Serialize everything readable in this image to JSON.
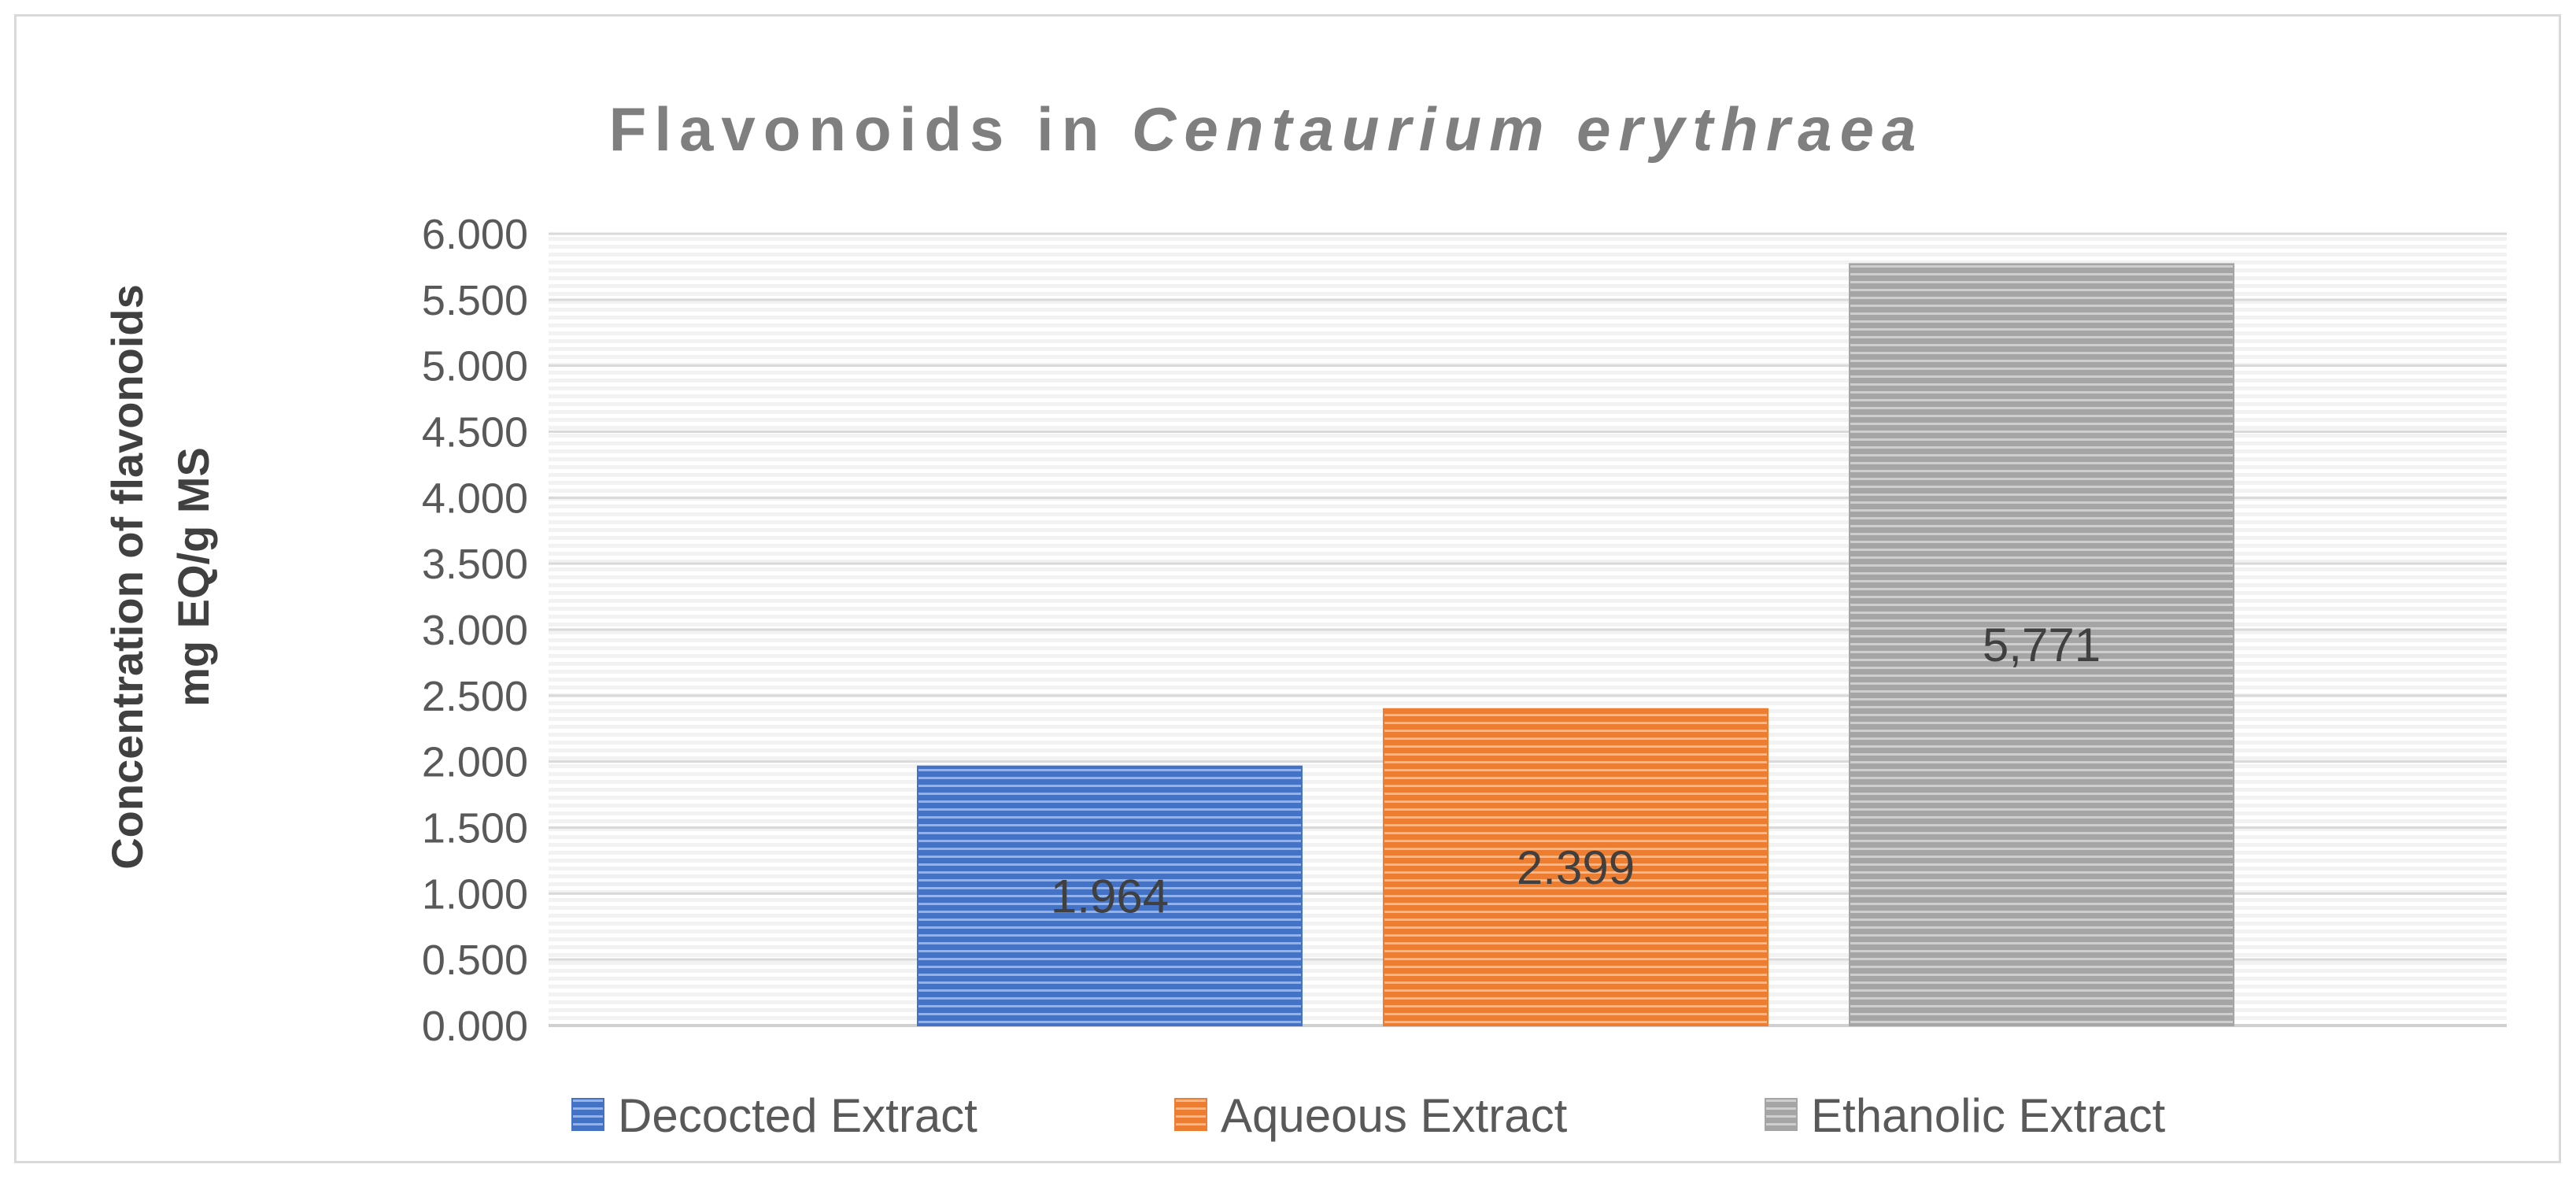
{
  "chart_data": {
    "type": "bar",
    "title_prefix": "Flavonoids in ",
    "title_italic": "Centaurium erythraea",
    "ylabel_line1": "Concentration of flavonoids",
    "ylabel_line2": "mg EQ/g MS",
    "xlabel": "",
    "ylim": [
      0,
      6
    ],
    "ytick_labels": [
      "0.000",
      "0.500",
      "1.000",
      "1.500",
      "2.000",
      "2.500",
      "3.000",
      "3.500",
      "4.000",
      "4.500",
      "5.000",
      "5.500",
      "6.000"
    ],
    "grid": true,
    "legend_position": "bottom",
    "series": [
      {
        "name": "Decocted Extract",
        "value": 1.964,
        "label": "1.964",
        "color": "#4472c4"
      },
      {
        "name": "Aqueous Extract",
        "value": 2.399,
        "label": "2.399",
        "color": "#ed7d31"
      },
      {
        "name": "Ethanolic Extract",
        "value": 5.771,
        "label": "5,771",
        "color": "#a5a5a5"
      }
    ]
  }
}
